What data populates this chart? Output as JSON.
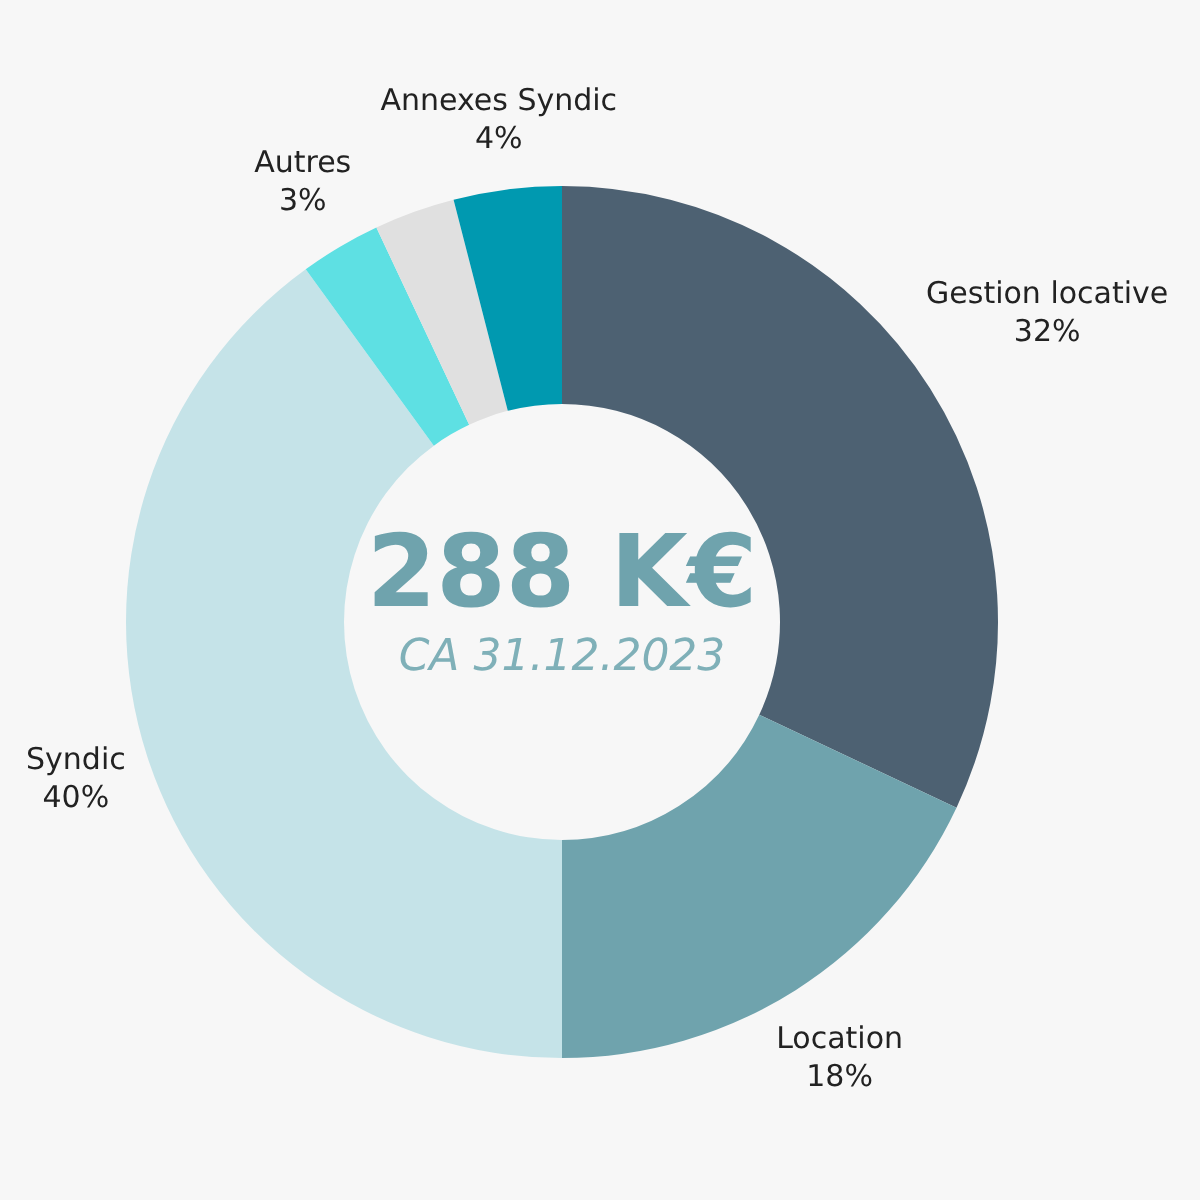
{
  "chart_data": {
    "type": "donut",
    "annotations": [
      "288 K€",
      "CA 31.12.2023"
    ],
    "categories": [
      "Gestion locative",
      "Location",
      "Syndic",
      "Autres",
      null,
      "Annexes Syndic"
    ],
    "values": [
      32,
      18,
      40,
      3,
      3,
      4
    ],
    "value_labels": [
      "32%",
      "18%",
      "40%",
      "3%",
      null,
      "4%"
    ],
    "colors": [
      "#4d6172",
      "#6fa3ad",
      "#c5e3e8",
      "#5ee0e3",
      "#e0e0e0",
      "#0099b0"
    ]
  }
}
